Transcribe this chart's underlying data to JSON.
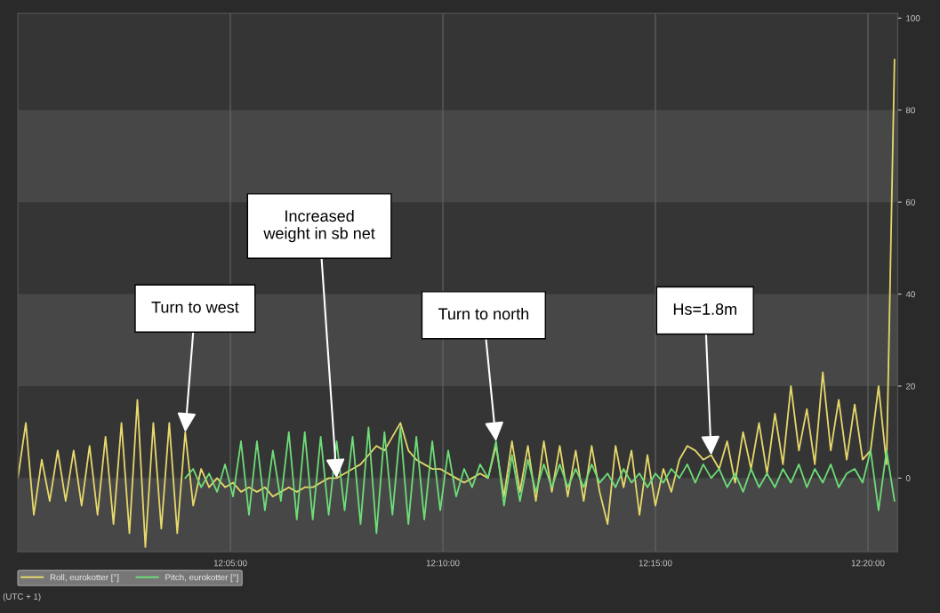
{
  "chart_data": {
    "type": "line",
    "x": [
      12.0,
      12.003125,
      12.00625,
      12.009375,
      12.0125,
      12.015625,
      12.01875,
      12.021875,
      12.025,
      12.028125,
      12.03125,
      12.034375,
      12.0375,
      12.040625,
      12.04375,
      12.046875,
      12.05,
      12.053125,
      12.05625,
      12.059375,
      12.0625,
      12.065625,
      12.06875,
      12.071875,
      12.075,
      12.078125,
      12.08125,
      12.084375,
      12.0875,
      12.090625,
      12.09375,
      12.096875,
      12.1,
      12.103125,
      12.10625,
      12.109375,
      12.1125,
      12.115625,
      12.11875,
      12.121875,
      12.125,
      12.128125,
      12.13125,
      12.134375,
      12.1375,
      12.140625,
      12.14375,
      12.146875,
      12.15,
      12.153125,
      12.15625,
      12.159375,
      12.1625,
      12.165625,
      12.16875,
      12.171875,
      12.175,
      12.178125,
      12.18125,
      12.184375,
      12.1875,
      12.190625,
      12.19375,
      12.196875,
      12.2,
      12.203125,
      12.20625,
      12.209375,
      12.2125,
      12.215625,
      12.21875,
      12.221875,
      12.225,
      12.228125,
      12.23125,
      12.234375,
      12.2375,
      12.240625,
      12.24375,
      12.246875,
      12.25,
      12.253125,
      12.25625,
      12.259375,
      12.2625,
      12.265625,
      12.26875,
      12.271875,
      12.275,
      12.278125,
      12.28125,
      12.284375,
      12.2875,
      12.290625,
      12.29375,
      12.296875,
      12.3,
      12.303125,
      12.30625,
      12.309375,
      12.3125,
      12.315625,
      12.31875,
      12.321875,
      12.325,
      12.328125,
      12.33125,
      12.334375,
      12.3375,
      12.340625,
      12.34375
    ],
    "series": [
      {
        "name": "Roll, eurokotter [°]",
        "color": "#e6d86a",
        "values": [
          0,
          12,
          -8,
          4,
          -5,
          6,
          -5,
          6,
          -6,
          7,
          -8,
          9,
          -10,
          12,
          -12,
          17,
          -15,
          12,
          -11,
          12,
          -12,
          10,
          -6,
          2,
          -2,
          0,
          -2,
          -1,
          -3,
          -2,
          -3,
          -2,
          -4,
          -3,
          -2,
          -3,
          -2,
          -2,
          -1,
          0,
          0,
          1,
          2,
          3,
          5,
          7,
          6,
          9,
          12,
          6,
          4,
          3,
          2,
          2,
          1,
          0,
          -1,
          0,
          1,
          0,
          7,
          -4,
          8,
          -3,
          7,
          -5,
          8,
          -3,
          7,
          -4,
          6,
          -5,
          7,
          -3,
          -10,
          7,
          -2,
          6,
          -8,
          5,
          -6,
          2,
          -3,
          4,
          7,
          6,
          4,
          5,
          2,
          8,
          -1,
          10,
          2,
          12,
          1,
          14,
          3,
          20,
          6,
          15,
          3,
          23,
          6,
          17,
          4,
          16,
          4,
          6,
          20,
          3,
          91
        ]
      },
      {
        "name": "Pitch, eurokotter [°]",
        "color": "#6ddc78",
        "values": [
          null,
          null,
          null,
          null,
          null,
          null,
          null,
          null,
          null,
          null,
          null,
          null,
          null,
          null,
          null,
          null,
          null,
          null,
          null,
          null,
          null,
          0,
          2,
          -2,
          1,
          -3,
          3,
          -4,
          8,
          -8,
          8,
          -7,
          6,
          -5,
          10,
          -9,
          10,
          -9,
          9,
          -8,
          8,
          -7,
          9,
          -10,
          11,
          -12,
          10,
          -8,
          11,
          -10,
          9,
          -9,
          8,
          -7,
          6,
          -4,
          2,
          -2,
          3,
          0,
          8,
          -6,
          5,
          -5,
          4,
          -3,
          3,
          -2,
          3,
          -2,
          2,
          -2,
          3,
          -1,
          1,
          -2,
          2,
          -1,
          1,
          -2,
          1,
          -1,
          2,
          0,
          3,
          -1,
          3,
          0,
          2,
          -2,
          1,
          -3,
          2,
          -2,
          1,
          -2,
          2,
          -1,
          3,
          -2,
          2,
          -1,
          3,
          -2,
          1,
          2,
          -1,
          6,
          -7,
          6,
          -5
        ]
      }
    ],
    "xlim": [
      12.0,
      12.345
    ],
    "xticks": [
      {
        "value": 12.083333,
        "label": "12:05:00"
      },
      {
        "value": 12.166667,
        "label": "12:10:00"
      },
      {
        "value": 12.25,
        "label": "12:15:00"
      },
      {
        "value": 12.333333,
        "label": "12:20:00"
      }
    ],
    "ylim": [
      -16,
      101
    ],
    "yticks": [
      0,
      20,
      40,
      60,
      80,
      100
    ],
    "bands": [
      {
        "axis": "y",
        "from": -16,
        "to": 0,
        "color": "#474747"
      },
      {
        "axis": "y",
        "from": 20,
        "to": 40,
        "color": "#474747"
      },
      {
        "axis": "y",
        "from": 60,
        "to": 80,
        "color": "#474747"
      }
    ],
    "grid": "x",
    "legend": "bottom left",
    "annotations": [
      {
        "text": "Turn to west",
        "x": 12.065625,
        "y": 10
      },
      {
        "text": "Increased\nweight in sb net",
        "x": 12.125,
        "y": 0
      },
      {
        "text": "Turn to north",
        "x": 12.1875,
        "y": 8
      },
      {
        "text": "Hs=1.8m",
        "x": 12.271875,
        "y": 5
      },
      "(UTC + 1)"
    ]
  }
}
